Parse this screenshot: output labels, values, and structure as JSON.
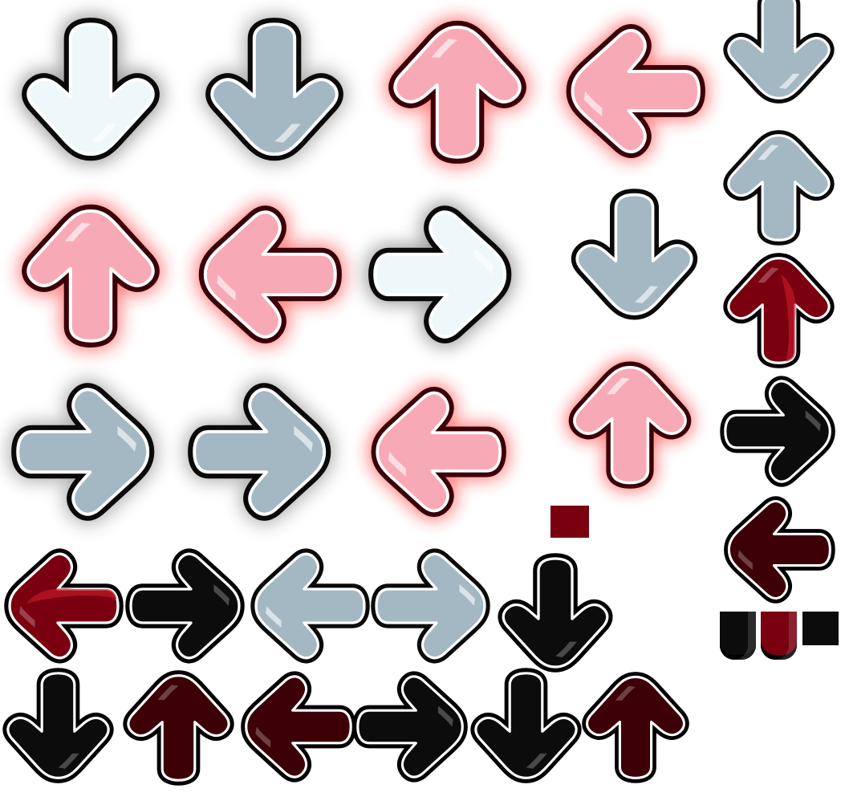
{
  "sprite_sheet": {
    "palette": {
      "white": {
        "fill": "#eef8fb",
        "outline": "#0a0a0a",
        "glow": "#555555"
      },
      "gray": {
        "fill": "#a4b8c4",
        "outline": "#0a0a0a",
        "glow": "#777777"
      },
      "pink": {
        "fill": "#f7aab5",
        "outline": "#3a0008",
        "glow": "#ff2020"
      },
      "dark": {
        "fill": "#0c0c0c",
        "outline": "#000000",
        "glow": "none"
      },
      "maroon": {
        "fill": "#3c0006",
        "outline": "#000000",
        "glow": "none"
      },
      "red": {
        "fill": "#7a0010",
        "outline": "#000000",
        "glow": "none"
      }
    },
    "arrows": [
      {
        "name": "arrow-down-white",
        "dir": "down",
        "color": "white",
        "glow": true
      },
      {
        "name": "arrow-down-gray",
        "dir": "down",
        "color": "gray",
        "glow": true
      },
      {
        "name": "arrow-up-pink",
        "dir": "up",
        "color": "pink",
        "glow": true
      },
      {
        "name": "arrow-left-pink",
        "dir": "left",
        "color": "pink",
        "glow": true
      },
      {
        "name": "arrow-down-gray-2",
        "dir": "down",
        "color": "gray",
        "glow": false
      },
      {
        "name": "arrow-up-pink-2",
        "dir": "up",
        "color": "pink",
        "glow": true
      },
      {
        "name": "arrow-left-pink-lit",
        "dir": "left",
        "color": "pink",
        "glow": true
      },
      {
        "name": "arrow-right-white",
        "dir": "right",
        "color": "white",
        "glow": true
      },
      {
        "name": "arrow-down-gray-3",
        "dir": "down",
        "color": "gray",
        "glow": false
      },
      {
        "name": "arrow-up-gray",
        "dir": "up",
        "color": "gray",
        "glow": false
      },
      {
        "name": "arrow-right-gray",
        "dir": "right",
        "color": "gray",
        "glow": true
      },
      {
        "name": "arrow-right-gray-2",
        "dir": "right",
        "color": "gray",
        "glow": true
      },
      {
        "name": "arrow-left-pink-2",
        "dir": "left",
        "color": "pink",
        "glow": true
      },
      {
        "name": "arrow-up-pink-3",
        "dir": "up",
        "color": "pink",
        "glow": true
      },
      {
        "name": "arrow-up-red",
        "dir": "up",
        "color": "red",
        "glow": false
      },
      {
        "name": "arrow-right-dark",
        "dir": "right",
        "color": "dark",
        "glow": false
      },
      {
        "name": "arrow-left-maroon",
        "dir": "left",
        "color": "maroon",
        "glow": false
      },
      {
        "name": "arrow-left-red",
        "dir": "left",
        "color": "red",
        "glow": false
      },
      {
        "name": "arrow-right-dark-2",
        "dir": "right",
        "color": "dark",
        "glow": false
      },
      {
        "name": "arrow-left-gray",
        "dir": "left",
        "color": "gray",
        "glow": false
      },
      {
        "name": "arrow-right-gray-3",
        "dir": "right",
        "color": "gray",
        "glow": false
      },
      {
        "name": "arrow-down-dark",
        "dir": "down",
        "color": "dark",
        "glow": false
      },
      {
        "name": "arrow-down-dark-2",
        "dir": "down",
        "color": "dark",
        "glow": false
      },
      {
        "name": "arrow-up-maroon",
        "dir": "up",
        "color": "maroon",
        "glow": false
      },
      {
        "name": "arrow-left-maroon-2",
        "dir": "left",
        "color": "maroon",
        "glow": false
      },
      {
        "name": "arrow-right-dark-3",
        "dir": "right",
        "color": "dark",
        "glow": false
      },
      {
        "name": "arrow-down-dark-3",
        "dir": "down",
        "color": "dark",
        "glow": false
      },
      {
        "name": "arrow-up-maroon-2",
        "dir": "up",
        "color": "maroon",
        "glow": false
      }
    ],
    "fragments": [
      {
        "name": "hold-piece-red",
        "color": "red"
      },
      {
        "name": "hold-end-dark",
        "color": "dark"
      },
      {
        "name": "hold-end-red",
        "color": "red"
      },
      {
        "name": "hold-piece-dark",
        "color": "dark"
      }
    ]
  }
}
